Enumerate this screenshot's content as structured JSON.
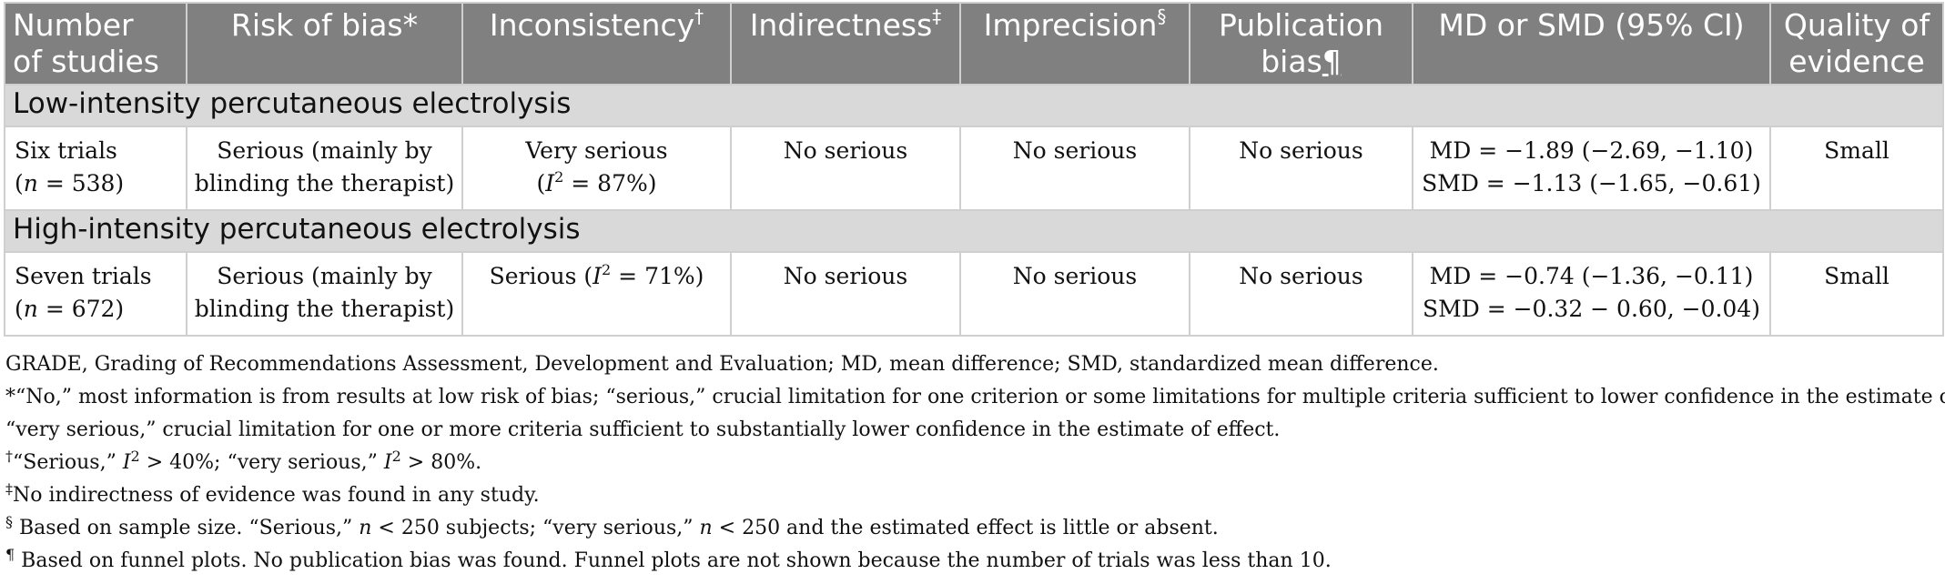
{
  "headers": {
    "col1_line1": "Number",
    "col1_line2": "of studies",
    "col2": "Risk of bias*",
    "col3": "Inconsistency",
    "col3_mark": "†",
    "col4": "Indirectness",
    "col4_mark": "‡",
    "col5": "Imprecision",
    "col5_mark": "§",
    "col6_line1": "Publication",
    "col6_line2": "bias",
    "col6_mark": "¶",
    "col7": "MD or SMD (95% CI)",
    "col8_line1": "Quality of",
    "col8_line2": "evidence"
  },
  "sections": [
    {
      "title": "Low-intensity percutaneous electrolysis",
      "row": {
        "studies_line1": "Six trials",
        "studies_n_prefix": "(",
        "studies_n_var": "n",
        "studies_n_rest": " = 538)",
        "risk_line1": "Serious (mainly by",
        "risk_line2": "blinding the therapist)",
        "incons_line1": "Very serious",
        "incons_pre": "(",
        "incons_var": "I",
        "incons_exp": "2",
        "incons_post": " = 87%)",
        "indirect": "No serious",
        "imprecision": "No serious",
        "pubbias": "No serious",
        "md": "MD = −1.89 (−2.69, −1.10)",
        "smd": "SMD = −1.13 (−1.65, −0.61)",
        "quality": "Small"
      }
    },
    {
      "title": "High-intensity percutaneous electrolysis",
      "row": {
        "studies_line1": "Seven trials",
        "studies_n_prefix": "(",
        "studies_n_var": "n",
        "studies_n_rest": " = 672)",
        "risk_line1": "Serious (mainly by",
        "risk_line2": "blinding the therapist)",
        "incons_pre": "Serious (",
        "incons_var": "I",
        "incons_exp": "2",
        "incons_post": " = 71%)",
        "indirect": "No serious",
        "imprecision": "No serious",
        "pubbias": "No serious",
        "md": "MD = −0.74 (−1.36, −0.11)",
        "smd": "SMD = −0.32 − 0.60, −0.04)",
        "quality": "Small"
      }
    }
  ],
  "footnotes": {
    "abbrev": "GRADE, Grading of Recommendations Assessment, Development and Evaluation; MD, mean difference; SMD, standardized mean difference.",
    "star_line1": "*“No,” most information is from results at low risk of bias; “serious,” crucial limitation for one criterion or some limitations for multiple criteria sufficient to lower confidence in the estimate of effect;",
    "star_line2": "“very serious,” crucial limitation for one or more criteria sufficient to substantially lower confidence in the estimate of effect.",
    "dagger_mark": "†",
    "dagger_a": "“Serious,” ",
    "dagger_var1": "I",
    "dagger_exp1": "2",
    "dagger_b": " > 40%; “very serious,” ",
    "dagger_var2": "I",
    "dagger_exp2": "2",
    "dagger_c": " > 80%.",
    "ddagger_mark": "‡",
    "ddagger_text": "No indirectness of evidence was found in any study.",
    "section_mark": "§",
    "section_a": " Based on sample size. “Serious,” ",
    "section_var1": "n",
    "section_b": " < 250 subjects; “very serious,” ",
    "section_var2": "n",
    "section_c": " < 250 and the estimated effect is little or absent.",
    "pilcrow_mark": "¶",
    "pilcrow_text": " Based on funnel plots. No publication bias was found. Funnel plots are not shown because the number of trials was less than 10."
  }
}
